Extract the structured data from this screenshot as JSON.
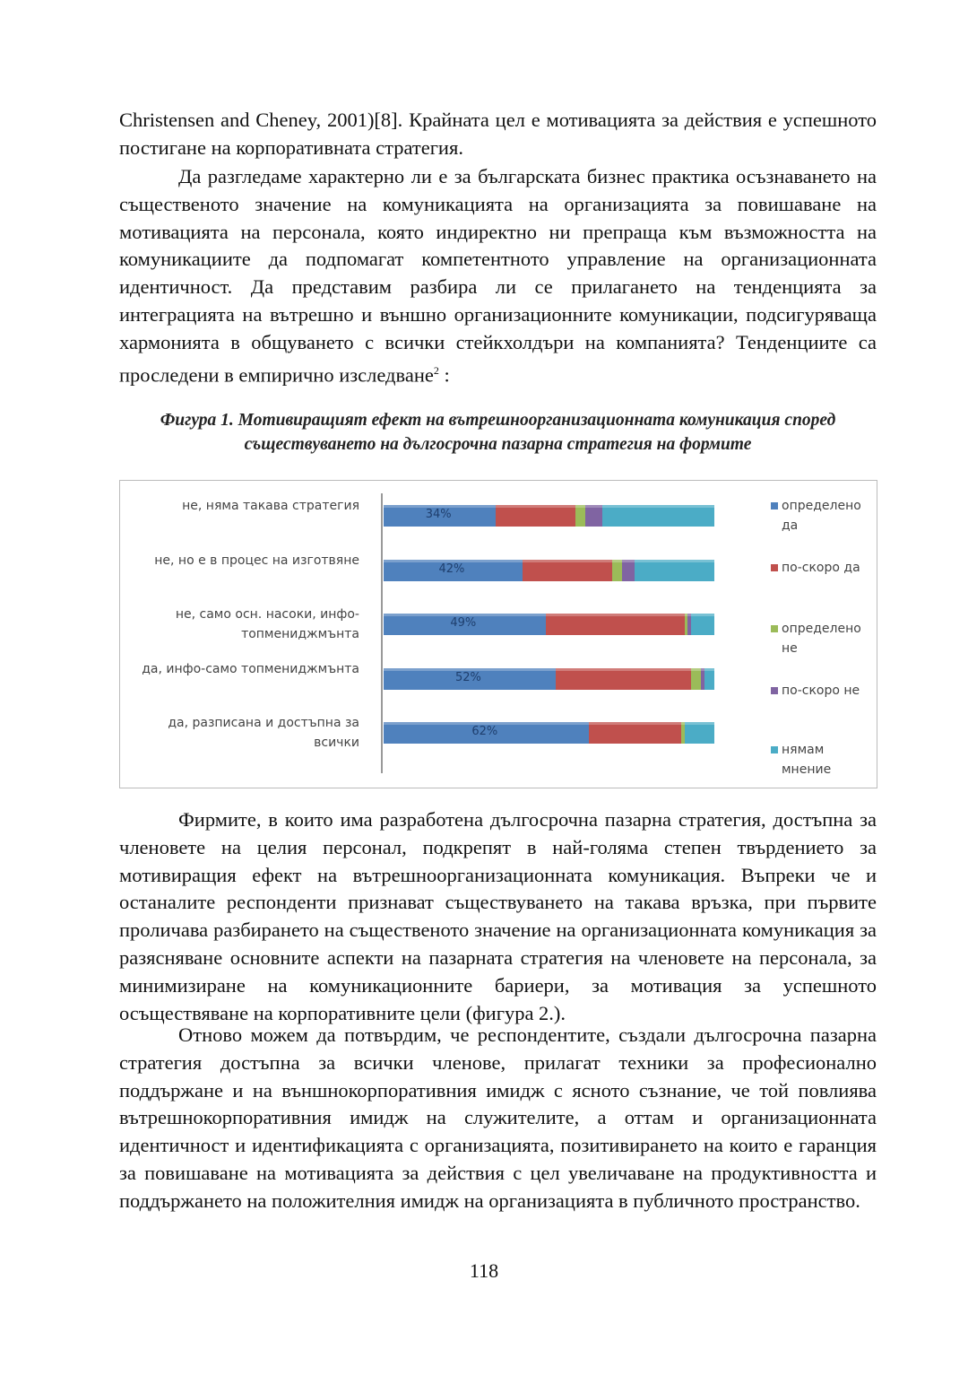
{
  "body_before": {
    "p1": "Christensen and Cheney, 2001)[8]. Крайната цел е мотивацията за действия е успешното постигане на корпоративната стратегия.",
    "p2": {
      "text": "Да разгледаме характерно ли е за българската бизнес практика осъзнаването на същественото значение на комуникацията на организацията за повишаване на мотивацията на персонала, която индиректно ни препраща към възможността на комуникациите да подпомагат компетентното управление на организационната идентичност. Да представим разбира ли се прилагането на тенденцията за интеграцията на вътрешно и външно организационните комуникации, подсигуряваща хармонията в общуването с всички стейкхолдъри на компанията? Тенденциите са проследени в емпирично изследване",
      "footnote": "2",
      "tail": " :"
    }
  },
  "figure": {
    "label": "Фигура 1.",
    "caption": "Мотивиращият ефект на вътрешноорганизационната комуникация според съществуването на дългосрочна пазарна стратегия на формите"
  },
  "chart_data": {
    "type": "bar",
    "orientation": "horizontal",
    "stacked": true,
    "legend": "right",
    "categories": [
      "не, няма такава стратегия",
      "не, но е в процес на изготвяне",
      "не, само осн. насоки, инфо-топмениджмънта",
      "да, инфо-само топмениджмънта",
      "да, разписана и достъпна за всички"
    ],
    "series": [
      {
        "name": "определено да",
        "color": "#4f81bd",
        "values": [
          34,
          42,
          49,
          52,
          62
        ],
        "value_labels": [
          "34%",
          "42%",
          "49%",
          "52%",
          "62%"
        ]
      },
      {
        "name": "по-скоро да",
        "color": "#c0504d",
        "values": [
          24,
          27,
          42,
          41,
          28
        ]
      },
      {
        "name": "определено не",
        "color": "#9bbb59",
        "values": [
          3,
          3,
          1,
          3,
          1
        ]
      },
      {
        "name": "по-скоро не",
        "color": "#8064a2",
        "values": [
          5,
          4,
          1,
          1,
          0
        ]
      },
      {
        "name": "нямам мнение",
        "color": "#4bacc6",
        "values": [
          34,
          24,
          7,
          3,
          9
        ]
      }
    ]
  },
  "body_after": [
    "Фирмите, в които има разработена дългосрочна пазарна стратегия, достъпна за членовете на целия персонал, подкрепят в най-голяма степен твърдението за мотивиращия ефект на вътрешноорганизационната комуникация. Въпреки че и останалите респонденти признават съществуването на такава връзка, при първите проличава разбирането на същественото значение на организационната комуникация за разясняване основните аспекти на пазарната стратегия на членовете на персонала, за минимизиране на комуникационните бариери, за мотивация за успешното осъществяване на корпоративните цели (фигура 2.).",
    "Отново можем да потвърдим, че респондентите, създали дългосрочна пазарна стратегия достъпна за всички членове, прилагат техники за професионално поддържане и на външнокорпоративния имидж с ясното съзнание, че той повлиява вътрешнокорпоративния имидж на служителите, а оттам и организационната идентичност и идентификацията с организацията, позитивирането на които е гаранция за повишаване на мотивацията за действия с цел увеличаване на продуктивността и поддържането на положителния имидж на организацията в публичното пространство."
  ],
  "page_number": "118"
}
